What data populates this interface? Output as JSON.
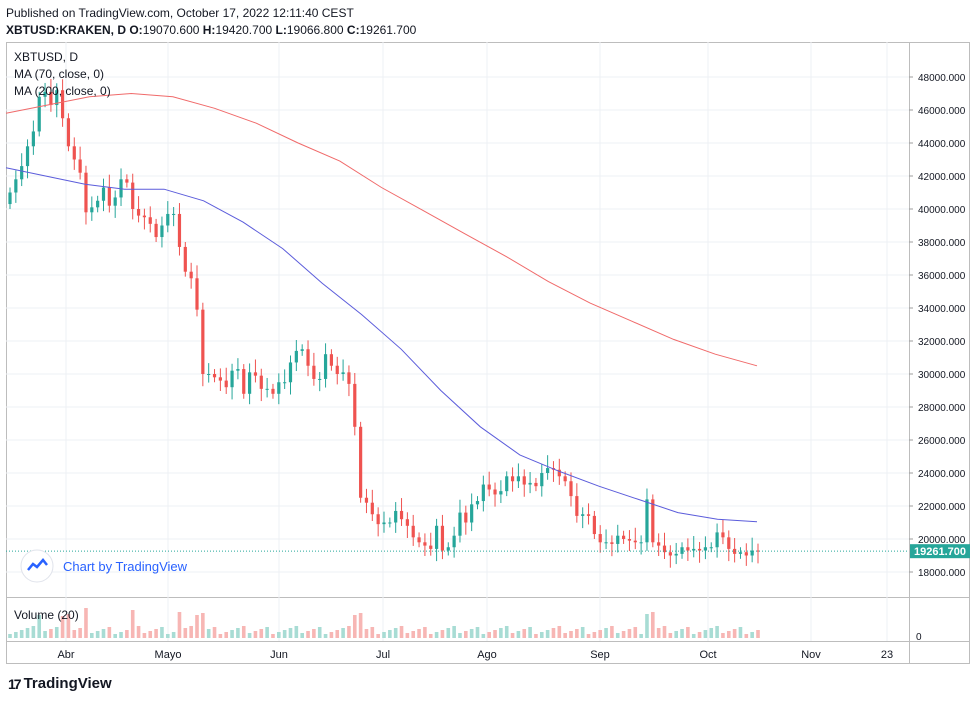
{
  "published": "Published on TradingView.com, October 17, 2022 12:11:40 CEST",
  "ohlc": {
    "symbol": "XBTUSD:KRAKEN, D",
    "open_label": "O:",
    "open": "19070.600",
    "high_label": "H:",
    "high": "19420.700",
    "low_label": "L:",
    "low": "19066.800",
    "close_label": "C:",
    "close": "19261.700"
  },
  "legend": {
    "symbol": "XBTUSD, D",
    "ma70": "MA (70, close, 0)",
    "ma200": "MA (200, close, 0)"
  },
  "watermark": "Chart by TradingView",
  "volume_label": "Volume (20)",
  "volume_axis_label": "0",
  "price_badge": "19261.700",
  "brand": "TradingView",
  "colors": {
    "up": "#26a69a",
    "down": "#ef5350",
    "ma70": "#5b5cdb",
    "ma200": "#f06a6a",
    "badge": "#26a69a",
    "brand": "#2962ff"
  },
  "chart_data": {
    "type": "candlestick",
    "title": "XBTUSD, D",
    "ylim": [
      17000,
      49000
    ],
    "y_ticks": [
      "48000.000",
      "46000.000",
      "44000.000",
      "42000.000",
      "40000.000",
      "38000.000",
      "36000.000",
      "34000.000",
      "32000.000",
      "30000.000",
      "28000.000",
      "26000.000",
      "24000.000",
      "22000.000",
      "20000.000",
      "18000.000"
    ],
    "x_ticks": [
      "Abr",
      "Mayo",
      "Jun",
      "Jul",
      "Ago",
      "Sep",
      "Oct",
      "Nov",
      "23"
    ],
    "grid": true,
    "legend_position": "top-left",
    "last_price": 19261.7,
    "ohlc_close_series": [
      41000,
      41800,
      42600,
      43800,
      44700,
      46800,
      47100,
      46300,
      47200,
      45500,
      43800,
      43000,
      42200,
      39800,
      40100,
      40500,
      41300,
      40200,
      40700,
      41800,
      41600,
      40000,
      39600,
      39500,
      39100,
      38300,
      39000,
      39700,
      39700,
      37700,
      36200,
      35800,
      33900,
      30000,
      30000,
      29800,
      29600,
      29200,
      30200,
      30300,
      28800,
      30100,
      29900,
      29100,
      29100,
      28800,
      29500,
      29500,
      30700,
      31400,
      31500,
      30500,
      29700,
      29700,
      31200,
      30500,
      30000,
      30100,
      29400,
      26800,
      22500,
      22200,
      21500,
      20900,
      21000,
      21000,
      21700,
      21200,
      20800,
      20100,
      19800,
      19600,
      19400,
      20800,
      19300,
      19500,
      20200,
      21600,
      21000,
      22100,
      22300,
      23300,
      23000,
      22700,
      22900,
      23800,
      23500,
      23800,
      23300,
      23400,
      23200,
      24000,
      24300,
      24200,
      23800,
      23500,
      22600,
      21400,
      21500,
      21400,
      20300,
      19800,
      19800,
      19700,
      20200,
      20000,
      19900,
      19800,
      19800,
      22400,
      19800,
      19600,
      19200,
      19000,
      19100,
      19500,
      19300,
      19400,
      19300,
      19500,
      19500,
      20400,
      20100,
      19400,
      19100,
      19200,
      19000,
      19300,
      19261.7
    ],
    "series": [
      {
        "name": "MA (70, close, 0)",
        "values_note": "moving average",
        "values": [
          42500,
          42000,
          41500,
          41200,
          41200,
          40500,
          39200,
          37600,
          35500,
          33600,
          31500,
          29000,
          26800,
          25100,
          24100,
          23200,
          22400,
          21600,
          21200,
          21050
        ]
      },
      {
        "name": "MA (200, close, 0)",
        "values": [
          45800,
          46300,
          46800,
          47000,
          46800,
          46100,
          45200,
          44000,
          42900,
          41300,
          39900,
          38500,
          37100,
          35600,
          34300,
          33200,
          32100,
          31200,
          30500
        ]
      }
    ],
    "volume": "relative volume bars (no labeled values)"
  }
}
